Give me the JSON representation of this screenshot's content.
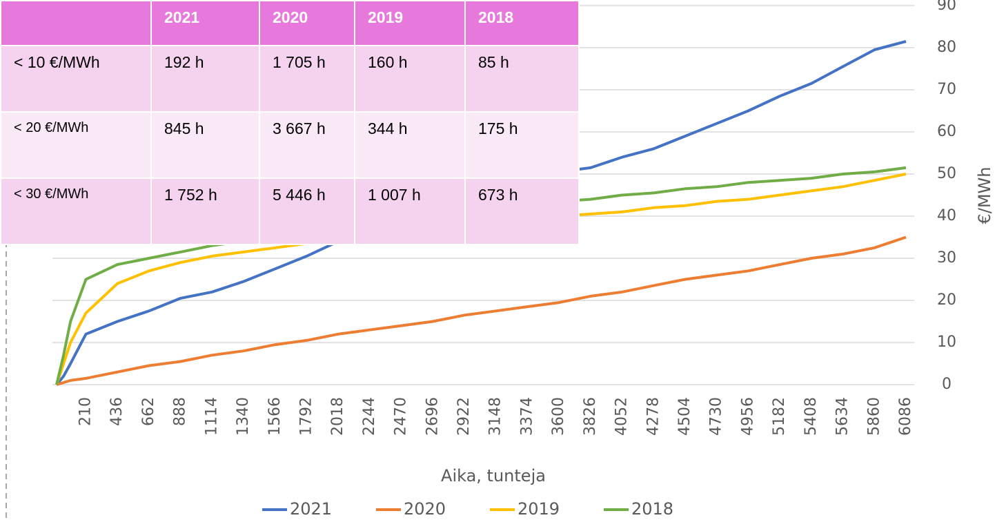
{
  "chart_data": {
    "type": "line",
    "x": [
      0,
      50,
      100,
      210,
      436,
      662,
      888,
      1114,
      1340,
      1566,
      1792,
      2018,
      2244,
      2470,
      2696,
      2922,
      3148,
      3374,
      3600,
      3826,
      4052,
      4278,
      4504,
      4730,
      4956,
      5182,
      5408,
      5634,
      5860,
      6086
    ],
    "series": [
      {
        "name": "2021",
        "color": "#4472c4",
        "values": [
          0,
          2,
          5,
          12,
          15,
          17.5,
          20.5,
          22,
          24.5,
          27.5,
          30.5,
          34,
          38,
          41,
          43,
          45,
          47,
          49,
          50.5,
          51.5,
          54,
          56,
          59,
          62,
          65,
          68.5,
          71.5,
          75.5,
          79.5,
          81.5
        ]
      },
      {
        "name": "2020",
        "color": "#ed7d31",
        "values": [
          0,
          0.5,
          1,
          1.5,
          3,
          4.5,
          5.5,
          7,
          8,
          9.5,
          10.5,
          12,
          13,
          14,
          15,
          16.5,
          17.5,
          18.5,
          19.5,
          21,
          22,
          23.5,
          25,
          26,
          27,
          28.5,
          30,
          31,
          32.5,
          35
        ]
      },
      {
        "name": "2019",
        "color": "#ffc000",
        "values": [
          0,
          5,
          10,
          17,
          24,
          27,
          29,
          30.5,
          31.5,
          32.5,
          33.5,
          34.5,
          35.5,
          36.5,
          37.5,
          38.5,
          39,
          39.5,
          40,
          40.5,
          41,
          42,
          42.5,
          43.5,
          44,
          45,
          46,
          47,
          48.5,
          50
        ]
      },
      {
        "name": "2018",
        "color": "#70ad47",
        "values": [
          0,
          7,
          15,
          25,
          28.5,
          30,
          31.5,
          33,
          34,
          35,
          36,
          37,
          38,
          39,
          40,
          41,
          42,
          42.5,
          43.5,
          44,
          45,
          45.5,
          46.5,
          47,
          48,
          48.5,
          49,
          50,
          50.5,
          51.5
        ]
      }
    ],
    "xlim": [
      0,
      6086
    ],
    "xticks": [
      210,
      436,
      662,
      888,
      1114,
      1340,
      1566,
      1792,
      2018,
      2244,
      2470,
      2696,
      2922,
      3148,
      3374,
      3600,
      3826,
      4052,
      4278,
      4504,
      4730,
      4956,
      5182,
      5408,
      5634,
      5860,
      6086
    ],
    "ylim": [
      0,
      90
    ],
    "yticks": [
      0,
      10,
      20,
      30,
      40,
      50,
      60,
      70,
      80,
      90
    ],
    "x_label": "Aika, tunteja",
    "y_label": "€/MWh",
    "grid": true
  },
  "table": {
    "columns": [
      "2021",
      "2020",
      "2019",
      "2018"
    ],
    "rows": [
      [
        "< 10 €/MWh",
        "192 h",
        "1 705 h",
        "160 h",
        "85 h"
      ],
      [
        "< 20 €/MWh",
        "845 h",
        "3 667 h",
        "344 h",
        "175 h"
      ],
      [
        "< 30 €/MWh",
        "1 752 h",
        "5 446 h",
        "1 007 h",
        "673 h"
      ]
    ]
  }
}
